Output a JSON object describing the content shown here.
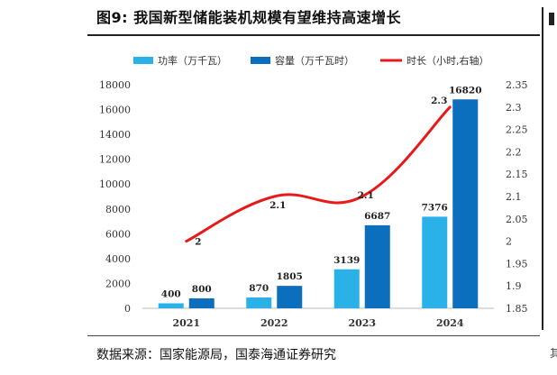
{
  "figure": {
    "title": "图9:  我国新型储能装机规模有望维持高速增长",
    "source": "数据来源：国家能源局，国泰海通证券研究",
    "edge_glyph": "其"
  },
  "colors": {
    "power": "#2ab1e8",
    "capacity": "#0b6fbe",
    "duration": "#e8191b"
  },
  "chart_data": {
    "type": "bar",
    "categories": [
      "2021",
      "2022",
      "2023",
      "2024"
    ],
    "series": [
      {
        "name": "功率（万千瓦）",
        "values": [
          400,
          870,
          3139,
          7376
        ],
        "axis": "left"
      },
      {
        "name": "容量（万千瓦时）",
        "values": [
          800,
          1805,
          6687,
          16820
        ],
        "axis": "left"
      },
      {
        "name": "时长（小时,右轴）",
        "type": "line",
        "values": [
          2,
          2.1,
          2.1,
          2.3
        ],
        "axis": "right"
      }
    ],
    "y_left": {
      "min": 0,
      "max": 18000,
      "ticks": [
        "0",
        "2000",
        "4000",
        "6000",
        "8000",
        "10000",
        "12000",
        "14000",
        "16000",
        "18000"
      ]
    },
    "y_right": {
      "min": 1.85,
      "max": 2.35,
      "ticks": [
        "1.85",
        "1.9",
        "1.95",
        "2",
        "2.05",
        "2.1",
        "2.15",
        "2.2",
        "2.25",
        "2.3",
        "2.35"
      ]
    },
    "legend_position": "top"
  }
}
